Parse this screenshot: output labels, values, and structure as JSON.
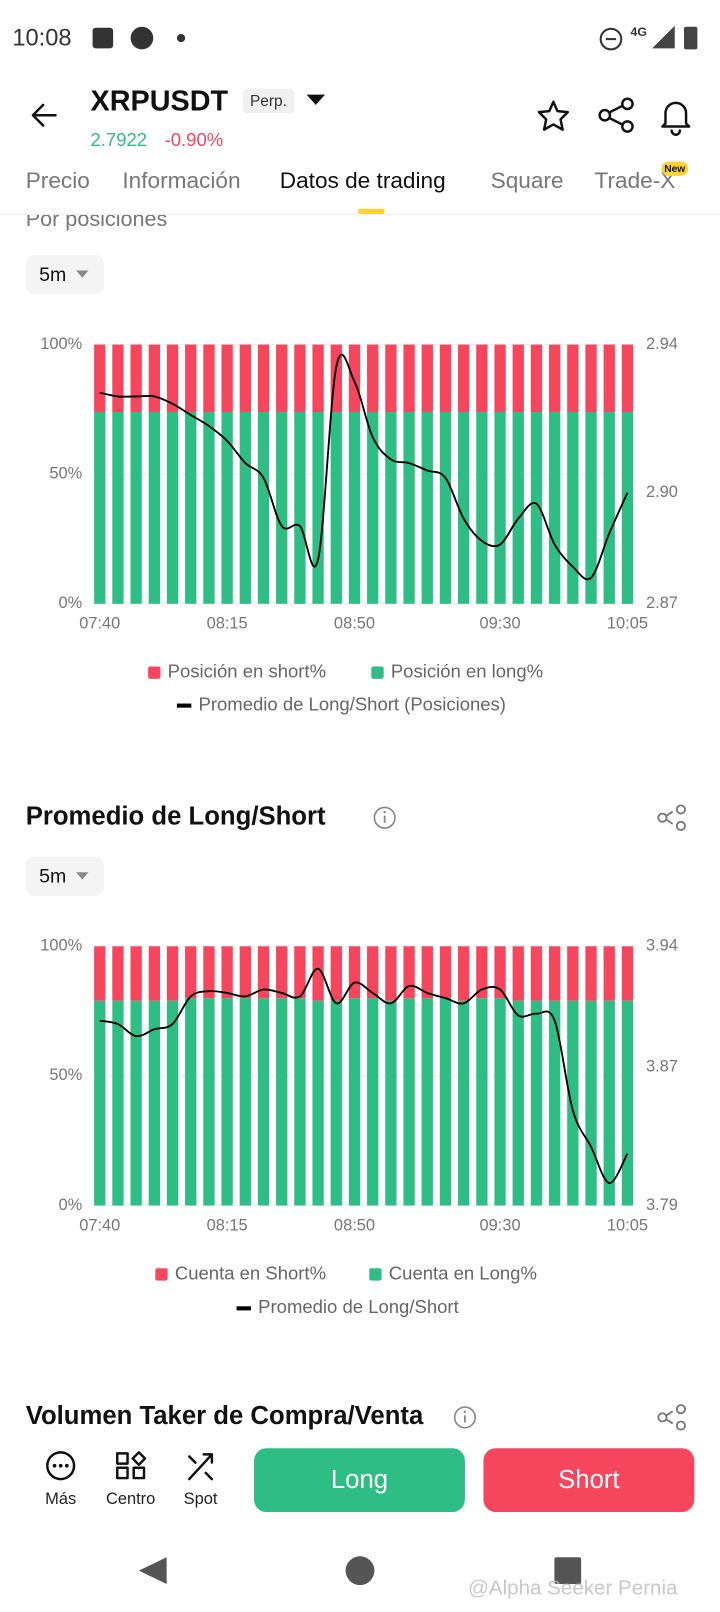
{
  "status_bar": {
    "time": "10:08",
    "network": "4G"
  },
  "header": {
    "symbol": "XRPUSDT",
    "tag": "Perp.",
    "price": "2.7922",
    "change": "-0.90%"
  },
  "tabs": [
    "Precio",
    "Información",
    "Datos de trading",
    "Square",
    "Trade-X"
  ],
  "tab_badge": "New",
  "chart_data": [
    {
      "type": "bar",
      "stacked": true,
      "grid": true,
      "title": "Por posiciones",
      "interval": "5m",
      "categories": [
        "07:40",
        null,
        null,
        null,
        null,
        null,
        null,
        "08:15",
        null,
        null,
        null,
        null,
        null,
        null,
        "08:50",
        null,
        null,
        null,
        null,
        null,
        null,
        null,
        "09:30",
        null,
        null,
        null,
        null,
        null,
        null,
        "10:05"
      ],
      "series": [
        {
          "name": "Posición en short%",
          "type": "bar",
          "color": "#f6465d",
          "values": [
            26,
            26,
            26,
            26,
            26,
            26,
            26,
            26,
            26,
            26,
            26,
            26,
            26,
            26,
            26,
            26,
            26,
            26,
            26,
            26,
            26,
            26,
            26,
            26,
            26,
            26,
            26,
            26,
            26,
            26
          ]
        },
        {
          "name": "Posición en long%",
          "type": "bar",
          "color": "#2ebd85",
          "values": [
            74,
            74,
            74,
            74,
            74,
            74,
            74,
            74,
            74,
            74,
            74,
            74,
            74,
            74,
            74,
            74,
            74,
            74,
            74,
            74,
            74,
            74,
            74,
            74,
            74,
            74,
            74,
            74,
            74,
            74
          ]
        },
        {
          "name": "Promedio de Long/Short (Posiciones)",
          "type": "line",
          "axis": "y2",
          "color": "#000000",
          "values": [
            2.927,
            2.926,
            2.926,
            2.926,
            2.924,
            2.921,
            2.918,
            2.914,
            2.908,
            2.904,
            2.891,
            2.891,
            2.882,
            2.934,
            2.93,
            2.915,
            2.909,
            2.908,
            2.906,
            2.904,
            2.893,
            2.887,
            2.886,
            2.893,
            2.897,
            2.886,
            2.88,
            2.877,
            2.889,
            2.9
          ]
        }
      ],
      "ylim": [
        0,
        100
      ],
      "yticks": [
        {
          "value": 0,
          "label": "0%"
        },
        {
          "value": 50,
          "label": "50%"
        },
        {
          "value": 100,
          "label": "100%"
        }
      ],
      "y2lim": [
        2.87,
        2.94
      ],
      "y2ticks": [
        2.87,
        {
          "value": 2.9,
          "label": "2.90"
        },
        2.94
      ]
    },
    {
      "type": "bar",
      "stacked": true,
      "grid": true,
      "title": "Promedio de Long/Short",
      "interval": "5m",
      "categories": [
        "07:40",
        null,
        null,
        null,
        null,
        null,
        null,
        "08:15",
        null,
        null,
        null,
        null,
        null,
        null,
        "08:50",
        null,
        null,
        null,
        null,
        null,
        null,
        null,
        "09:30",
        null,
        null,
        null,
        null,
        null,
        null,
        "10:05"
      ],
      "series": [
        {
          "name": "Cuenta en Short%",
          "type": "bar",
          "color": "#f6465d",
          "values": [
            21,
            21,
            21,
            21,
            21,
            20,
            20,
            20,
            20,
            20,
            20,
            20,
            21,
            21,
            20,
            20,
            21,
            20,
            20,
            20,
            21,
            20,
            20,
            21,
            21,
            21,
            21,
            21,
            21,
            21
          ]
        },
        {
          "name": "Cuenta en Long%",
          "type": "bar",
          "color": "#2ebd85",
          "values": [
            79,
            79,
            79,
            79,
            79,
            80,
            80,
            80,
            80,
            80,
            80,
            80,
            79,
            79,
            80,
            80,
            79,
            80,
            80,
            80,
            79,
            80,
            80,
            79,
            79,
            79,
            79,
            79,
            79,
            79
          ]
        },
        {
          "name": "Promedio de Long/Short",
          "type": "line",
          "axis": "y2",
          "color": "#000000",
          "values": [
            3.897,
            3.895,
            3.888,
            3.892,
            3.895,
            3.911,
            3.914,
            3.913,
            3.911,
            3.915,
            3.913,
            3.911,
            3.927,
            3.907,
            3.919,
            3.913,
            3.907,
            3.917,
            3.913,
            3.91,
            3.907,
            3.915,
            3.915,
            3.9,
            3.901,
            3.897,
            3.845,
            3.824,
            3.803,
            3.82
          ]
        }
      ],
      "ylim": [
        0,
        100
      ],
      "yticks": [
        {
          "value": 0,
          "label": "0%"
        },
        {
          "value": 50,
          "label": "50%"
        },
        {
          "value": 100,
          "label": "100%"
        }
      ],
      "y2lim": [
        3.79,
        3.94
      ],
      "y2ticks": [
        3.79,
        3.87,
        3.94
      ]
    }
  ],
  "next_section": "Volumen Taker de Compra/Venta",
  "bottom_bar": {
    "items": [
      "Más",
      "Centro",
      "Spot"
    ],
    "long": "Long",
    "short": "Short"
  },
  "watermark": "@Alpha Seeker Pernia"
}
